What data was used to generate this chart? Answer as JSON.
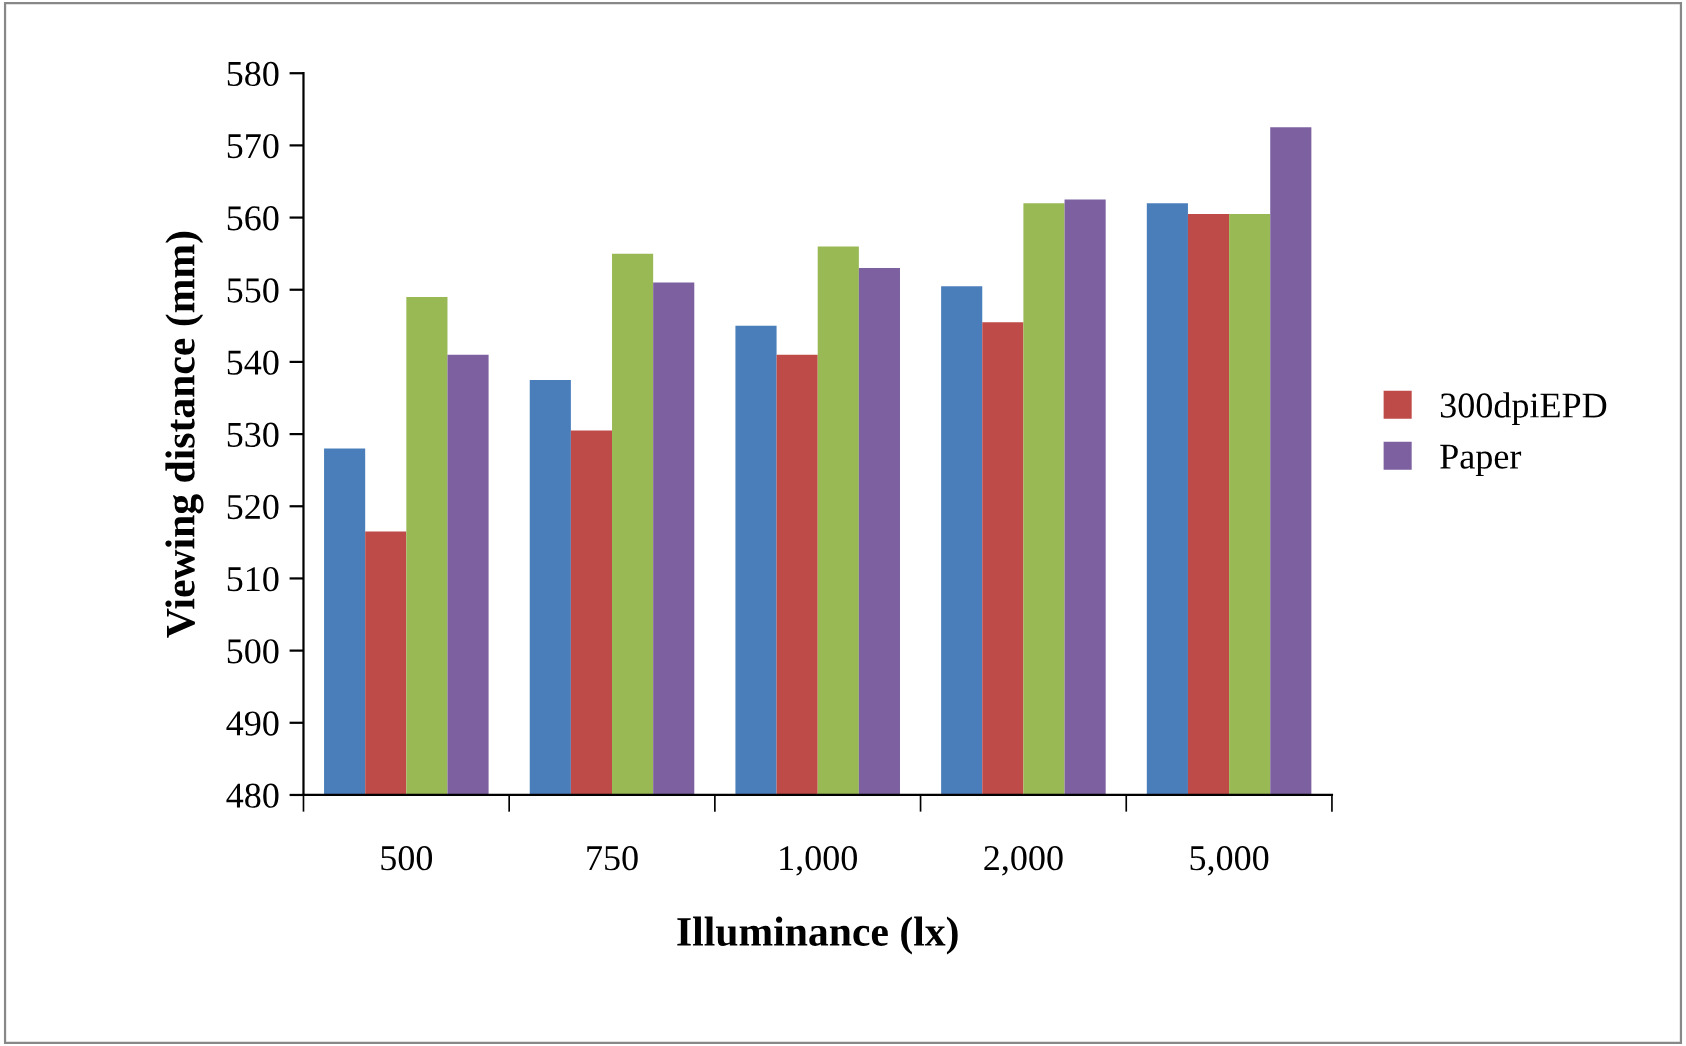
{
  "chart_data": {
    "type": "bar",
    "xlabel": "Illuminance (lx)",
    "ylabel": "Viewing distance (mm)",
    "categories": [
      "500",
      "750",
      "1,000",
      "2,000",
      "5,000"
    ],
    "series": [
      {
        "color": "#4a7ebb",
        "values": [
          528,
          537.5,
          545,
          550.5,
          562
        ]
      },
      {
        "name": "300dpiEPD",
        "color": "#be4b48",
        "values": [
          516.5,
          530.5,
          541,
          545.5,
          560.5
        ]
      },
      {
        "color": "#98b954",
        "values": [
          549,
          555,
          556,
          562,
          560.5
        ]
      },
      {
        "name": "Paper",
        "color": "#7d60a0",
        "values": [
          541,
          551,
          553,
          562.5,
          572.5
        ]
      }
    ],
    "ylim": [
      480,
      580
    ],
    "yticks": [
      480,
      490,
      500,
      510,
      520,
      530,
      540,
      550,
      560,
      570,
      580
    ],
    "grid": false,
    "legend": "right"
  }
}
